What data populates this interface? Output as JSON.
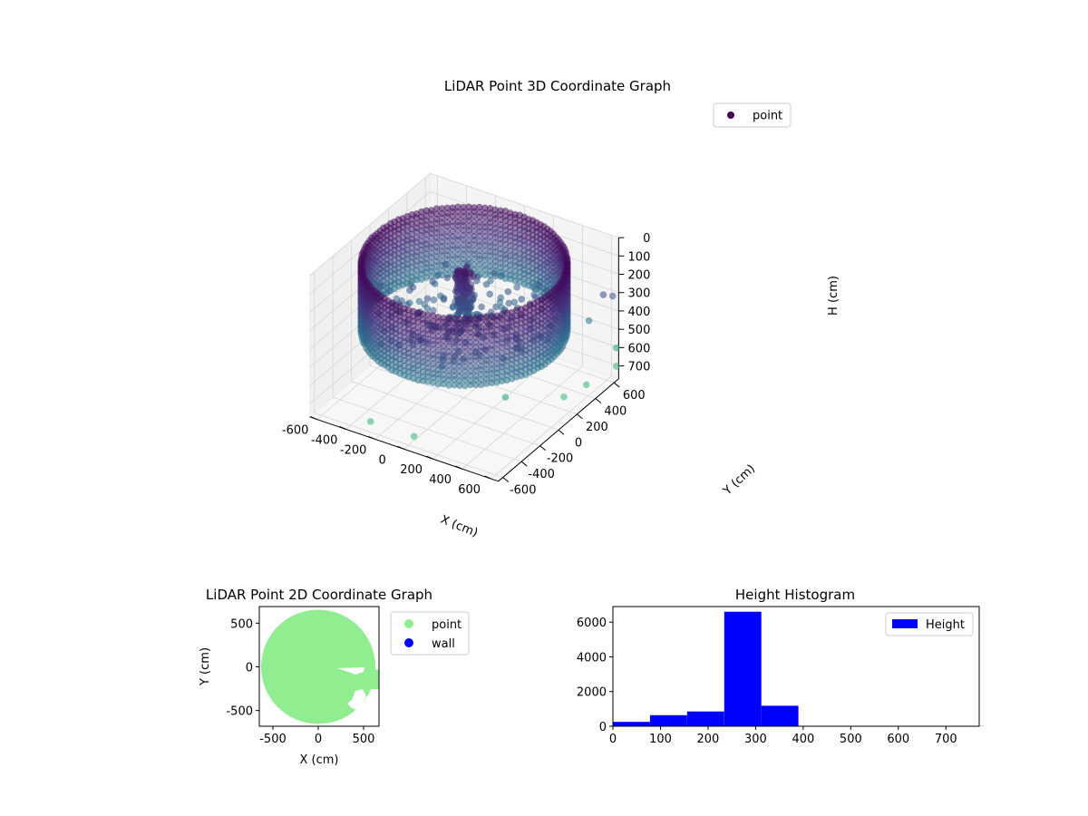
{
  "colors": {
    "viridis_dark": "#440154",
    "viridis_mid": "#31688e",
    "viridis_teal": "#35b779",
    "point_green": "#90ee90",
    "wall_blue": "#0000ff",
    "hist_blue": "#0000ff",
    "pane": "#f2f2f2",
    "grid": "#d9d9d9"
  },
  "chart_data": [
    {
      "type": "scatter",
      "projection": "3d",
      "title": "LiDAR Point 3D Coordinate Graph",
      "xlabel": "X (cm)",
      "ylabel": "Y (cm)",
      "zlabel": "H (cm)",
      "xticks": [
        -600,
        -400,
        -200,
        0,
        200,
        400,
        600
      ],
      "yticks": [
        -600,
        -400,
        -200,
        0,
        200,
        400,
        600
      ],
      "zticks": [
        0,
        100,
        200,
        300,
        400,
        500,
        600,
        700
      ],
      "xlim": [
        -650,
        650
      ],
      "ylim": [
        -650,
        650
      ],
      "zlim": [
        0,
        770
      ],
      "z_inverted": true,
      "legend": [
        {
          "label": "point",
          "color": "#440154"
        }
      ],
      "legend_position": "upper right",
      "grid": true,
      "colormap": "viridis",
      "structure": {
        "wall_radius": 600,
        "wall_h_range": [
          30,
          400
        ],
        "outliers": [
          {
            "x": -250,
            "y": -620,
            "h": 700
          },
          {
            "x": 50,
            "y": -620,
            "h": 700
          },
          {
            "x": 380,
            "y": -150,
            "h": 600
          },
          {
            "x": 560,
            "y": 200,
            "h": 700
          },
          {
            "x": 600,
            "y": 380,
            "h": 700
          },
          {
            "x": 640,
            "y": 640,
            "h": 700
          },
          {
            "x": 640,
            "y": 640,
            "h": 600
          },
          {
            "x": 640,
            "y": 600,
            "h": 300
          },
          {
            "x": 640,
            "y": 500,
            "h": 250
          },
          {
            "x": 560,
            "y": 470,
            "h": 400
          }
        ]
      }
    },
    {
      "type": "scatter",
      "title": "LiDAR Point 2D Coordinate Graph",
      "xlabel": "X (cm)",
      "ylabel": "Y (cm)",
      "xticks": [
        -500,
        0,
        500
      ],
      "yticks": [
        -500,
        0,
        500
      ],
      "xlim": [
        -650,
        670
      ],
      "ylim": [
        -680,
        690
      ],
      "series": [
        {
          "name": "point",
          "color": "#90ee90",
          "shape": "filled disc",
          "center": [
            0,
            0
          ],
          "radius": 630
        },
        {
          "name": "wall",
          "color": "#0000ff",
          "points": []
        }
      ],
      "legend_position": "outside right"
    },
    {
      "type": "bar",
      "title": "Height Histogram",
      "xticks": [
        0,
        100,
        200,
        300,
        400,
        500,
        600,
        700
      ],
      "yticks": [
        0,
        2000,
        4000,
        6000
      ],
      "xlim": [
        0,
        770
      ],
      "ylim": [
        0,
        6900
      ],
      "bin_edges": [
        0,
        78,
        156,
        234,
        312,
        390,
        468,
        546,
        624,
        702,
        780
      ],
      "series": [
        {
          "name": "Height",
          "color": "#0000ff",
          "values": [
            250,
            640,
            850,
            6600,
            1180,
            8,
            4,
            3,
            3,
            10
          ]
        }
      ],
      "legend_position": "upper right"
    }
  ]
}
